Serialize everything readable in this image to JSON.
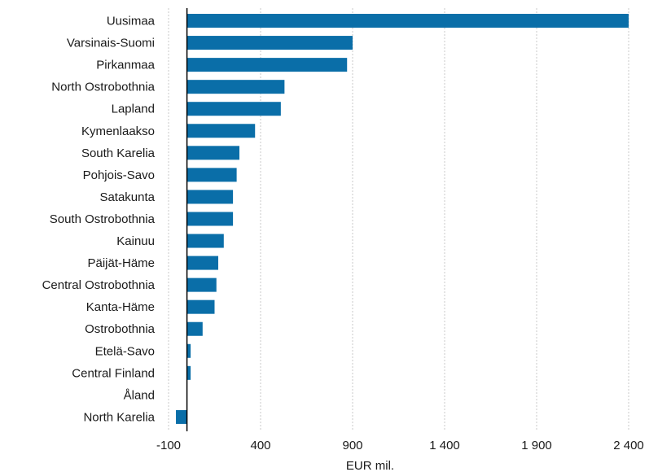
{
  "chart_data": {
    "type": "bar",
    "orientation": "horizontal",
    "title": "",
    "xlabel": "EUR mil.",
    "ylabel": "",
    "categories": [
      "Uusimaa",
      "Varsinais-Suomi",
      "Pirkanmaa",
      "North Ostrobothnia",
      "Lapland",
      "Kymenlaakso",
      "South Karelia",
      "Pohjois-Savo",
      "Satakunta",
      "South Ostrobothnia",
      "Kainuu",
      "Päijät-Häme",
      "Central Ostrobothnia",
      "Kanta-Häme",
      "Ostrobothnia",
      "Etelä-Savo",
      "Central Finland",
      "Åland",
      "North Karelia"
    ],
    "values": [
      2400,
      900,
      870,
      530,
      510,
      370,
      285,
      270,
      250,
      250,
      200,
      170,
      160,
      150,
      85,
      20,
      20,
      0,
      -60
    ],
    "xlim": [
      -100,
      2400
    ],
    "xticks": [
      -100,
      400,
      900,
      1400,
      1900,
      2400
    ],
    "xtick_labels": [
      "-100",
      "400",
      "900",
      "1 400",
      "1 900",
      "2 400"
    ],
    "grid": true,
    "legend": "none",
    "colors": {
      "bar": "#0a6ea8",
      "grid": "#c8c8c8",
      "axis": "#000000",
      "text": "#1a1a1a"
    }
  }
}
